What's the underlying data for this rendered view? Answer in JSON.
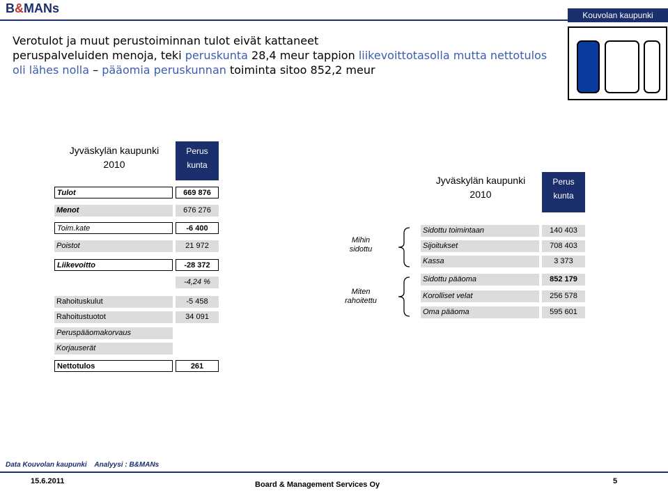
{
  "header": {
    "logo_main": "B",
    "logo_amp": "&",
    "logo_rest": "MANs",
    "client": "Kouvolan kaupunki"
  },
  "title": {
    "line1_a": "Verotulot ja muut perustoiminnan tulot eivät kattaneet",
    "line2_a": "peruspalveluiden menoja, teki ",
    "line2_hl1": "peruskunta",
    "line2_b": " 28,4  meur tappion ",
    "line2_hl2": "liikevoittotasolla mutta nettotulos",
    "line3_hl": "oli lähes nolla",
    "line3_b": " – ",
    "line3_hl2": "pääomia peruskunnan",
    "line3_c": " toiminta sitoo 852,2 meur"
  },
  "left_table": {
    "header_title1": "Jyväskylän kaupunki",
    "header_title2": "2010",
    "col_header1": "Perus",
    "col_header2": "kunta",
    "rows": [
      {
        "label": "Tulot",
        "value": "669 876"
      },
      {
        "label": "Menot",
        "value": "676 276"
      },
      {
        "label": "Toim.kate",
        "value": "-6 400"
      },
      {
        "label": "Poistot",
        "value": "21 972"
      },
      {
        "label": "Liikevoitto",
        "value": "-28 372"
      },
      {
        "label": "",
        "value": "-4,24 %"
      },
      {
        "label": "Rahoituskulut",
        "value": "-5 458"
      },
      {
        "label": "Rahoitustuotot",
        "value": "34 091"
      },
      {
        "label": "Peruspääomakorvaus",
        "value": ""
      },
      {
        "label": "Korjauserät",
        "value": ""
      },
      {
        "label": "Nettotulos",
        "value": "261"
      }
    ]
  },
  "middle": {
    "mihin1": "Mihin",
    "mihin2": "sidottu",
    "miten1": "Miten",
    "miten2": "rahoitettu"
  },
  "right_table": {
    "header_title1": "Jyväskylän kaupunki",
    "header_title2": "2010",
    "col_header1": "Perus",
    "col_header2": "kunta",
    "rows": [
      {
        "label": "Sidottu toimintaan",
        "value": "140 403"
      },
      {
        "label": "Sijoitukset",
        "value": "708 403"
      },
      {
        "label": "Kassa",
        "value": "3 373"
      },
      {
        "label": "Sidottu pääoma",
        "value": "852 179"
      },
      {
        "label": "Korolliset velat",
        "value": "256 578"
      },
      {
        "label": "Oma pääoma",
        "value": "595 601"
      }
    ]
  },
  "footer": {
    "source": "Data Kouvolan kaupunki    Analyysi : B&MANs",
    "date": "15.6.2011",
    "company": "Board & Management Services Oy",
    "page": "5"
  },
  "colors": {
    "navy": "#1a2f6b",
    "highlight": "#3a5db0",
    "cell_gray": "#dcdcdc"
  }
}
